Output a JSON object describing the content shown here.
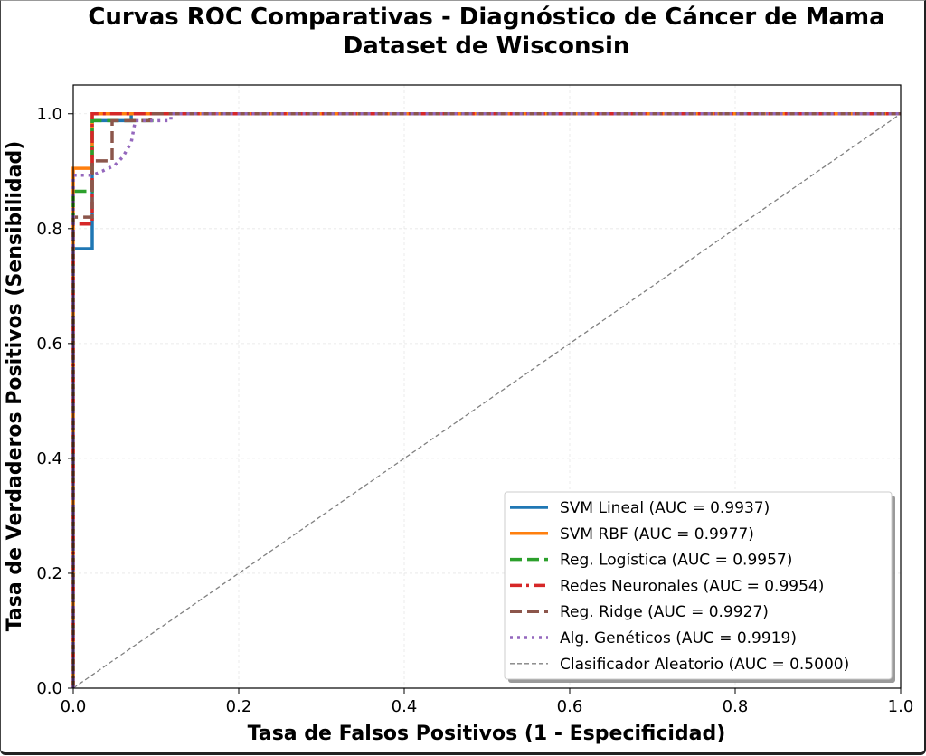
{
  "chart_data": {
    "type": "line",
    "title": "Curvas ROC Comparativas - Diagnóstico de Cáncer de Mama",
    "subtitle": "Dataset de Wisconsin",
    "xlabel": "Tasa de Falsos Positivos (1 - Especificidad)",
    "ylabel": "Tasa de Verdaderos Positivos (Sensibilidad)",
    "xlim": [
      0,
      1.0
    ],
    "ylim": [
      0,
      1.05
    ],
    "xticks": [
      0.0,
      0.2,
      0.4,
      0.6,
      0.8,
      1.0
    ],
    "yticks": [
      0.0,
      0.2,
      0.4,
      0.6,
      0.8,
      1.0
    ],
    "xtick_labels": [
      "0.0",
      "0.2",
      "0.4",
      "0.6",
      "0.8",
      "1.0"
    ],
    "ytick_labels": [
      "0.0",
      "0.2",
      "0.4",
      "0.6",
      "0.8",
      "1.0"
    ],
    "grid": true,
    "legend_position": "lower-right",
    "series": [
      {
        "name": "SVM Lineal (AUC = 0.9937)",
        "color": "#1f77b4",
        "style": "solid",
        "x": [
          0,
          0,
          0.023,
          0.023,
          0.07,
          0.07,
          1.0
        ],
        "y": [
          0,
          0.765,
          0.765,
          0.988,
          0.988,
          1.0,
          1.0
        ]
      },
      {
        "name": "SVM RBF (AUC = 0.9977)",
        "color": "#ff7f0e",
        "style": "solid",
        "x": [
          0,
          0,
          0.023,
          0.023,
          1.0
        ],
        "y": [
          0,
          0.905,
          0.905,
          1.0,
          1.0
        ]
      },
      {
        "name": "Reg. Logística (AUC = 0.9957)",
        "color": "#2ca02c",
        "style": "dashed",
        "x": [
          0,
          0,
          0.023,
          0.023,
          0.095,
          0.095,
          1.0
        ],
        "y": [
          0,
          0.865,
          0.865,
          0.988,
          0.988,
          1.0,
          1.0
        ]
      },
      {
        "name": "Redes Neuronales (AUC = 0.9954)",
        "color": "#d62728",
        "style": "dashdot",
        "x": [
          0,
          0,
          0.023,
          0.023,
          1.0
        ],
        "y": [
          0,
          0.808,
          0.808,
          1.0,
          1.0
        ]
      },
      {
        "name": "Reg. Ridge (AUC = 0.9927)",
        "color": "#8c564b",
        "style": "dashed",
        "x": [
          0,
          0,
          0.023,
          0.023,
          0.047,
          0.047,
          0.093,
          0.093,
          1.0
        ],
        "y": [
          0,
          0.82,
          0.82,
          0.918,
          0.918,
          0.988,
          0.988,
          1.0,
          1.0
        ]
      },
      {
        "name": "Alg. Genéticos (AUC = 0.9919)",
        "color": "#9467bd",
        "style": "dotted",
        "x": [
          0,
          0,
          0.01,
          0.023,
          0.035,
          0.05,
          0.06,
          0.07,
          0.075,
          0.1,
          0.118,
          0.118,
          1.0
        ],
        "y": [
          0,
          0.893,
          0.893,
          0.893,
          0.9,
          0.91,
          0.925,
          0.95,
          0.988,
          0.988,
          0.988,
          1.0,
          1.0
        ]
      },
      {
        "name": "Clasificador Aleatorio (AUC = 0.5000)",
        "color": "#808080",
        "style": "dashed-thin",
        "x": [
          0,
          1.0
        ],
        "y": [
          0,
          1.0
        ]
      }
    ]
  }
}
